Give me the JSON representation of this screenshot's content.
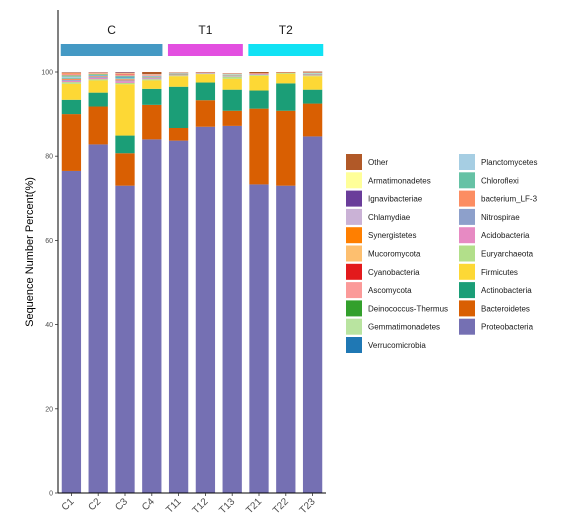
{
  "chart_data": {
    "type": "bar",
    "stacked": true,
    "xlabel": "",
    "ylabel": "Sequence Number Percent(%)",
    "ylim": [
      0,
      100
    ],
    "yticks": [
      0,
      20,
      40,
      60,
      80,
      100
    ],
    "grid": false,
    "legend_position": "right",
    "categories": [
      "C1",
      "C2",
      "C3",
      "C4",
      "T11",
      "T12",
      "T13",
      "T21",
      "T22",
      "T23"
    ],
    "groups": [
      {
        "label": "C",
        "color": "#4499c4",
        "members": [
          "C1",
          "C2",
          "C3",
          "C4"
        ]
      },
      {
        "label": "T1",
        "color": "#e34fe0",
        "members": [
          "T11",
          "T12",
          "T13"
        ]
      },
      {
        "label": "T2",
        "color": "#11e2f4",
        "members": [
          "T21",
          "T22",
          "T23"
        ]
      }
    ],
    "series": [
      {
        "name": "Proteobacteria",
        "color": "#7570b3",
        "values": [
          76.5,
          82.8,
          73.0,
          84.0,
          83.7,
          87.0,
          87.2,
          73.3,
          73.0,
          84.7
        ]
      },
      {
        "name": "Bacteroidetes",
        "color": "#d95f02",
        "values": [
          13.5,
          9.0,
          7.7,
          8.2,
          3.0,
          6.3,
          3.6,
          18.0,
          17.8,
          7.8
        ]
      },
      {
        "name": "Actinobacteria",
        "color": "#1b9e77",
        "values": [
          3.4,
          3.3,
          4.2,
          3.8,
          9.8,
          4.2,
          5.0,
          4.3,
          6.5,
          3.3
        ]
      },
      {
        "name": "Firmicutes",
        "color": "#fdd835",
        "values": [
          3.8,
          2.9,
          12.2,
          2.0,
          2.5,
          2.0,
          2.6,
          3.5,
          2.3,
          3.2
        ]
      },
      {
        "name": "Euryarchaeota",
        "color": "#b2df8a",
        "values": [
          0.4,
          0.3,
          0.3,
          0.3,
          0.2,
          0.1,
          0.5,
          0.2,
          0.2,
          0.2
        ]
      },
      {
        "name": "Acidobacteria",
        "color": "#e78ac3",
        "values": [
          0.3,
          0.3,
          0.4,
          0.2,
          0.1,
          0.1,
          0.1,
          0.1,
          0.0,
          0.1
        ]
      },
      {
        "name": "Nitrospirae",
        "color": "#8da0cb",
        "values": [
          0.2,
          0.2,
          0.2,
          0.1,
          0.0,
          0.1,
          0.1,
          0.1,
          0.0,
          0.1
        ]
      },
      {
        "name": "bacterium_LF-3",
        "color": "#fc8d62",
        "values": [
          0.3,
          0.2,
          0.3,
          0.1,
          0.1,
          0.0,
          0.1,
          0.1,
          0.1,
          0.1
        ]
      },
      {
        "name": "Chloroflexi",
        "color": "#66c2a5",
        "values": [
          0.2,
          0.1,
          0.2,
          0.1,
          0.1,
          0.0,
          0.1,
          0.0,
          0.0,
          0.1
        ]
      },
      {
        "name": "Planctomycetes",
        "color": "#a6cee3",
        "values": [
          0.2,
          0.1,
          0.2,
          0.1,
          0.0,
          0.0,
          0.1,
          0.0,
          0.0,
          0.1
        ]
      },
      {
        "name": "Verrucomicrobia",
        "color": "#1f78b4",
        "values": [
          0.1,
          0.1,
          0.2,
          0.1,
          0.1,
          0.0,
          0.0,
          0.0,
          0.0,
          0.0
        ]
      },
      {
        "name": "Gemmatimonadetes",
        "color": "#b9e4a0",
        "values": [
          0.2,
          0.1,
          0.1,
          0.1,
          0.1,
          0.0,
          0.1,
          0.0,
          0.0,
          0.1
        ]
      },
      {
        "name": "Deinococcus-Thermus",
        "color": "#33a02c",
        "values": [
          0.1,
          0.1,
          0.1,
          0.0,
          0.0,
          0.0,
          0.0,
          0.0,
          0.0,
          0.0
        ]
      },
      {
        "name": "Ascomycota",
        "color": "#fb9a99",
        "values": [
          0.3,
          0.2,
          0.3,
          0.2,
          0.1,
          0.1,
          0.1,
          0.1,
          0.0,
          0.1
        ]
      },
      {
        "name": "Cyanobacteria",
        "color": "#e31a1c",
        "values": [
          0.1,
          0.0,
          0.1,
          0.0,
          0.0,
          0.0,
          0.0,
          0.0,
          0.0,
          0.0
        ]
      },
      {
        "name": "Mucoromycota",
        "color": "#fdbf6f",
        "values": [
          0.1,
          0.1,
          0.1,
          0.1,
          0.0,
          0.0,
          0.0,
          0.0,
          0.0,
          0.0
        ]
      },
      {
        "name": "Synergistetes",
        "color": "#ff7f00",
        "values": [
          0.1,
          0.0,
          0.1,
          0.0,
          0.0,
          0.0,
          0.0,
          0.0,
          0.0,
          0.0
        ]
      },
      {
        "name": "Chlamydiae",
        "color": "#cab2d6",
        "values": [
          0.1,
          0.1,
          0.1,
          0.1,
          0.0,
          0.0,
          0.0,
          0.0,
          0.0,
          0.0
        ]
      },
      {
        "name": "Ignavibacteriae",
        "color": "#6a3d9a",
        "values": [
          0.0,
          0.0,
          0.1,
          0.0,
          0.0,
          0.0,
          0.0,
          0.0,
          0.0,
          0.0
        ]
      },
      {
        "name": "Armatimonadetes",
        "color": "#ffff99",
        "values": [
          0.0,
          0.0,
          0.0,
          0.0,
          0.0,
          0.0,
          0.0,
          0.0,
          0.0,
          0.0
        ]
      },
      {
        "name": "Other",
        "color": "#b15928",
        "values": [
          0.1,
          0.1,
          0.1,
          0.5,
          0.1,
          0.1,
          0.1,
          0.3,
          0.1,
          0.2
        ]
      }
    ],
    "legend_columns": [
      [
        "Other",
        "Armatimonadetes",
        "Ignavibacteriae",
        "Chlamydiae",
        "Synergistetes",
        "Mucoromycota",
        "Cyanobacteria",
        "Ascomycota",
        "Deinococcus-Thermus",
        "Gemmatimonadetes",
        "Verrucomicrobia"
      ],
      [
        "Planctomycetes",
        "Chloroflexi",
        "bacterium_LF-3",
        "Nitrospirae",
        "Acidobacteria",
        "Euryarchaeota",
        "Firmicutes",
        "Actinobacteria",
        "Bacteroidetes",
        "Proteobacteria"
      ]
    ]
  }
}
